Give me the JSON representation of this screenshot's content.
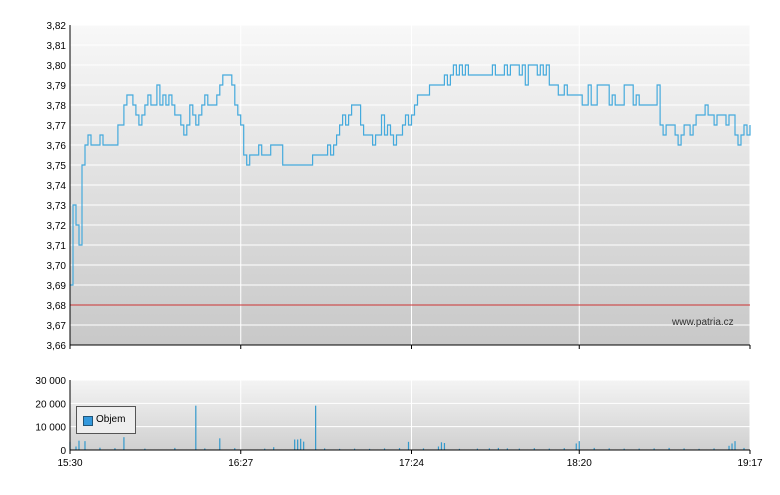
{
  "watermark": "www.patria.cz",
  "legend": {
    "label": "Objem"
  },
  "colors": {
    "price_line": "#44aadd",
    "reference_line": "#cc3333",
    "volume_bar": "#3399cc"
  },
  "chart_data": [
    {
      "type": "line",
      "name": "price",
      "y_ticks": [
        "3,82",
        "3,81",
        "3,80",
        "3,79",
        "3,78",
        "3,77",
        "3,76",
        "3,75",
        "3,74",
        "3,73",
        "3,72",
        "3,71",
        "3,70",
        "3,69",
        "3,68",
        "3,67",
        "3,66"
      ],
      "ylim": [
        3.66,
        3.82
      ],
      "x_ticks": [
        "15:30",
        "16:27",
        "17:24",
        "18:20",
        "19:17"
      ],
      "reference_value": 3.68,
      "grid": true,
      "points": [
        [
          "15:30",
          3.69
        ],
        [
          "15:31",
          3.73
        ],
        [
          "15:32",
          3.72
        ],
        [
          "15:33",
          3.71
        ],
        [
          "15:34",
          3.75
        ],
        [
          "15:35",
          3.76
        ],
        [
          "15:36",
          3.765
        ],
        [
          "15:37",
          3.76
        ],
        [
          "15:39",
          3.76
        ],
        [
          "15:40",
          3.765
        ],
        [
          "15:41",
          3.76
        ],
        [
          "15:44",
          3.76
        ],
        [
          "15:46",
          3.77
        ],
        [
          "15:48",
          3.78
        ],
        [
          "15:49",
          3.785
        ],
        [
          "15:50",
          3.785
        ],
        [
          "15:51",
          3.78
        ],
        [
          "15:52",
          3.775
        ],
        [
          "15:53",
          3.77
        ],
        [
          "15:54",
          3.775
        ],
        [
          "15:55",
          3.78
        ],
        [
          "15:56",
          3.785
        ],
        [
          "15:57",
          3.78
        ],
        [
          "15:58",
          3.78
        ],
        [
          "15:59",
          3.79
        ],
        [
          "16:00",
          3.78
        ],
        [
          "16:01",
          3.785
        ],
        [
          "16:02",
          3.78
        ],
        [
          "16:03",
          3.785
        ],
        [
          "16:04",
          3.78
        ],
        [
          "16:05",
          3.775
        ],
        [
          "16:06",
          3.775
        ],
        [
          "16:07",
          3.77
        ],
        [
          "16:08",
          3.765
        ],
        [
          "16:09",
          3.77
        ],
        [
          "16:10",
          3.78
        ],
        [
          "16:11",
          3.775
        ],
        [
          "16:12",
          3.77
        ],
        [
          "16:13",
          3.775
        ],
        [
          "16:14",
          3.78
        ],
        [
          "16:15",
          3.785
        ],
        [
          "16:16",
          3.78
        ],
        [
          "16:18",
          3.78
        ],
        [
          "16:19",
          3.785
        ],
        [
          "16:20",
          3.79
        ],
        [
          "16:21",
          3.795
        ],
        [
          "16:23",
          3.795
        ],
        [
          "16:24",
          3.79
        ],
        [
          "16:25",
          3.78
        ],
        [
          "16:26",
          3.775
        ],
        [
          "16:27",
          3.77
        ],
        [
          "16:28",
          3.755
        ],
        [
          "16:29",
          3.75
        ],
        [
          "16:30",
          3.755
        ],
        [
          "16:32",
          3.755
        ],
        [
          "16:33",
          3.76
        ],
        [
          "16:34",
          3.755
        ],
        [
          "16:36",
          3.755
        ],
        [
          "16:37",
          3.76
        ],
        [
          "16:40",
          3.76
        ],
        [
          "16:41",
          3.75
        ],
        [
          "16:46",
          3.75
        ],
        [
          "16:49",
          3.75
        ],
        [
          "16:51",
          3.755
        ],
        [
          "16:55",
          3.755
        ],
        [
          "16:56",
          3.76
        ],
        [
          "16:57",
          3.755
        ],
        [
          "16:58",
          3.76
        ],
        [
          "16:59",
          3.765
        ],
        [
          "17:00",
          3.77
        ],
        [
          "17:01",
          3.775
        ],
        [
          "17:02",
          3.77
        ],
        [
          "17:03",
          3.775
        ],
        [
          "17:04",
          3.78
        ],
        [
          "17:06",
          3.78
        ],
        [
          "17:07",
          3.77
        ],
        [
          "17:08",
          3.765
        ],
        [
          "17:09",
          3.765
        ],
        [
          "17:10",
          3.765
        ],
        [
          "17:11",
          3.76
        ],
        [
          "17:12",
          3.765
        ],
        [
          "17:13",
          3.765
        ],
        [
          "17:14",
          3.775
        ],
        [
          "17:15",
          3.765
        ],
        [
          "17:16",
          3.77
        ],
        [
          "17:17",
          3.765
        ],
        [
          "17:18",
          3.76
        ],
        [
          "17:19",
          3.765
        ],
        [
          "17:20",
          3.765
        ],
        [
          "17:21",
          3.77
        ],
        [
          "17:22",
          3.775
        ],
        [
          "17:23",
          3.77
        ],
        [
          "17:24",
          3.775
        ],
        [
          "17:25",
          3.78
        ],
        [
          "17:26",
          3.785
        ],
        [
          "17:27",
          3.785
        ],
        [
          "17:29",
          3.785
        ],
        [
          "17:30",
          3.79
        ],
        [
          "17:34",
          3.79
        ],
        [
          "17:35",
          3.795
        ],
        [
          "17:36",
          3.79
        ],
        [
          "17:37",
          3.795
        ],
        [
          "17:38",
          3.8
        ],
        [
          "17:39",
          3.795
        ],
        [
          "17:40",
          3.8
        ],
        [
          "17:41",
          3.795
        ],
        [
          "17:42",
          3.8
        ],
        [
          "17:43",
          3.795
        ],
        [
          "17:50",
          3.795
        ],
        [
          "17:51",
          3.8
        ],
        [
          "17:52",
          3.795
        ],
        [
          "17:55",
          3.8
        ],
        [
          "17:56",
          3.795
        ],
        [
          "17:57",
          3.8
        ],
        [
          "17:59",
          3.8
        ],
        [
          "18:00",
          3.795
        ],
        [
          "18:01",
          3.8
        ],
        [
          "18:02",
          3.79
        ],
        [
          "18:03",
          3.8
        ],
        [
          "18:05",
          3.8
        ],
        [
          "18:06",
          3.795
        ],
        [
          "18:07",
          3.8
        ],
        [
          "18:08",
          3.795
        ],
        [
          "18:09",
          3.8
        ],
        [
          "18:10",
          3.79
        ],
        [
          "18:12",
          3.79
        ],
        [
          "18:13",
          3.785
        ],
        [
          "18:14",
          3.785
        ],
        [
          "18:15",
          3.79
        ],
        [
          "18:16",
          3.785
        ],
        [
          "18:17",
          3.785
        ],
        [
          "18:20",
          3.785
        ],
        [
          "18:21",
          3.78
        ],
        [
          "18:22",
          3.78
        ],
        [
          "18:23",
          3.79
        ],
        [
          "18:24",
          3.78
        ],
        [
          "18:25",
          3.78
        ],
        [
          "18:26",
          3.79
        ],
        [
          "18:29",
          3.79
        ],
        [
          "18:30",
          3.78
        ],
        [
          "18:31",
          3.785
        ],
        [
          "18:32",
          3.78
        ],
        [
          "18:34",
          3.78
        ],
        [
          "18:35",
          3.79
        ],
        [
          "18:37",
          3.79
        ],
        [
          "18:38",
          3.78
        ],
        [
          "18:39",
          3.785
        ],
        [
          "18:40",
          3.78
        ],
        [
          "18:45",
          3.78
        ],
        [
          "18:46",
          3.79
        ],
        [
          "18:47",
          3.77
        ],
        [
          "18:48",
          3.765
        ],
        [
          "18:49",
          3.77
        ],
        [
          "18:51",
          3.77
        ],
        [
          "18:52",
          3.765
        ],
        [
          "18:53",
          3.76
        ],
        [
          "18:54",
          3.765
        ],
        [
          "18:55",
          3.77
        ],
        [
          "18:56",
          3.77
        ],
        [
          "18:57",
          3.765
        ],
        [
          "18:58",
          3.77
        ],
        [
          "18:59",
          3.775
        ],
        [
          "19:01",
          3.775
        ],
        [
          "19:02",
          3.78
        ],
        [
          "19:03",
          3.775
        ],
        [
          "19:04",
          3.775
        ],
        [
          "19:05",
          3.77
        ],
        [
          "19:06",
          3.775
        ],
        [
          "19:08",
          3.775
        ],
        [
          "19:09",
          3.77
        ],
        [
          "19:10",
          3.775
        ],
        [
          "19:11",
          3.775
        ],
        [
          "19:12",
          3.765
        ],
        [
          "19:13",
          3.76
        ],
        [
          "19:14",
          3.765
        ],
        [
          "19:15",
          3.77
        ],
        [
          "19:16",
          3.765
        ],
        [
          "19:17",
          3.77
        ]
      ]
    },
    {
      "type": "bar",
      "name": "volume",
      "y_ticks": [
        "30 000",
        "20 000",
        "10 000",
        "0"
      ],
      "ylim": [
        0,
        30000
      ],
      "x_ticks": [
        "15:30",
        "16:27",
        "17:24",
        "18:20",
        "19:17"
      ],
      "grid": true,
      "bars": [
        [
          "15:30",
          3500
        ],
        [
          "15:32",
          1500
        ],
        [
          "15:33",
          4000
        ],
        [
          "15:35",
          3800
        ],
        [
          "15:40",
          1000
        ],
        [
          "15:45",
          800
        ],
        [
          "15:48",
          5500
        ],
        [
          "15:55",
          600
        ],
        [
          "16:05",
          900
        ],
        [
          "16:12",
          19000
        ],
        [
          "16:15",
          700
        ],
        [
          "16:20",
          5000
        ],
        [
          "16:25",
          800
        ],
        [
          "16:35",
          600
        ],
        [
          "16:38",
          1200
        ],
        [
          "16:45",
          4500
        ],
        [
          "16:46",
          4500
        ],
        [
          "16:47",
          4800
        ],
        [
          "16:48",
          3600
        ],
        [
          "16:52",
          19000
        ],
        [
          "16:55",
          700
        ],
        [
          "17:00",
          500
        ],
        [
          "17:05",
          600
        ],
        [
          "17:10",
          500
        ],
        [
          "17:15",
          700
        ],
        [
          "17:20",
          800
        ],
        [
          "17:23",
          3500
        ],
        [
          "17:28",
          700
        ],
        [
          "17:33",
          1500
        ],
        [
          "17:34",
          3300
        ],
        [
          "17:35",
          3000
        ],
        [
          "17:40",
          500
        ],
        [
          "17:46",
          600
        ],
        [
          "17:50",
          700
        ],
        [
          "17:53",
          900
        ],
        [
          "17:56",
          700
        ],
        [
          "18:00",
          600
        ],
        [
          "18:05",
          800
        ],
        [
          "18:10",
          600
        ],
        [
          "18:15",
          800
        ],
        [
          "18:19",
          2800
        ],
        [
          "18:20",
          3800
        ],
        [
          "18:25",
          900
        ],
        [
          "18:30",
          700
        ],
        [
          "18:35",
          600
        ],
        [
          "18:40",
          600
        ],
        [
          "18:45",
          700
        ],
        [
          "18:50",
          900
        ],
        [
          "18:55",
          700
        ],
        [
          "19:00",
          500
        ],
        [
          "19:05",
          700
        ],
        [
          "19:10",
          1800
        ],
        [
          "19:11",
          2800
        ],
        [
          "19:12",
          3800
        ],
        [
          "19:15",
          900
        ]
      ]
    }
  ]
}
